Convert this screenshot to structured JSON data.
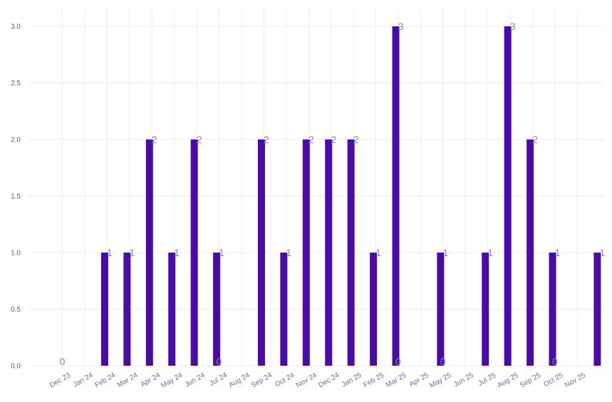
{
  "chart_data": {
    "type": "bar",
    "categories": [
      "Dec 23",
      "Jan 24",
      "Feb 24",
      "Mar 24",
      "Apr 24",
      "May 24",
      "Jun 24",
      "Jul 24",
      "Aug 24",
      "Sep 24",
      "Oct 24",
      "Nov 24",
      "Dec 24",
      "Jan 25",
      "Feb 25",
      "Mar 25",
      "Apr 25",
      "May 25",
      "Jun 25",
      "Jul 25",
      "Aug 25",
      "Sep 25",
      "Oct 25",
      "Nov 25"
    ],
    "values": [
      0,
      1,
      1,
      2,
      1,
      2,
      1,
      0,
      2,
      1,
      2,
      2,
      2,
      1,
      3,
      0,
      1,
      0,
      1,
      3,
      2,
      1,
      0,
      1
    ],
    "data_labels": [
      "0",
      "1",
      "1",
      "2",
      "1",
      "2",
      "1",
      "0",
      "2",
      "1",
      "2",
      "2",
      "2",
      "1",
      "3",
      "0",
      "1",
      "0",
      "1",
      "3",
      "2",
      "1",
      "0",
      "1"
    ],
    "y_ticks": [
      "0.0",
      "0.5",
      "1.0",
      "1.5",
      "2.0",
      "2.5",
      "3.0"
    ],
    "ylim": [
      0,
      3
    ],
    "title": "",
    "xlabel": "",
    "ylabel": "",
    "grid": true,
    "legend": "none",
    "bar_color": "#4b0aab",
    "label_color": "#7f86b8",
    "tick_color": "#6a6fa8"
  }
}
